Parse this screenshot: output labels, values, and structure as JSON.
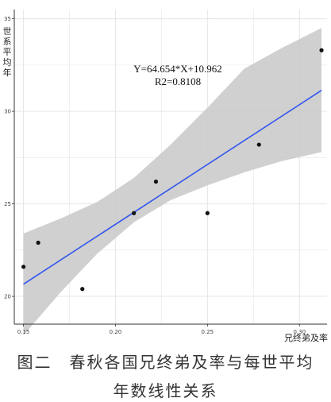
{
  "chart_data": {
    "type": "scatter",
    "ylabel": "世系平均年",
    "xlabel": "兄终弟及率",
    "xlim": [
      0.145,
      0.315
    ],
    "ylim": [
      18.5,
      35.5
    ],
    "x_ticks": [
      0.15,
      0.2,
      0.25,
      0.3
    ],
    "x_tick_labels": [
      "0.15",
      "0.20",
      "0.25",
      "0.30"
    ],
    "y_ticks": [
      20,
      25,
      30,
      35
    ],
    "y_tick_labels": [
      "20",
      "25",
      "30",
      "35"
    ],
    "grid": true,
    "points": [
      {
        "x": 0.15,
        "y": 21.6
      },
      {
        "x": 0.158,
        "y": 22.9
      },
      {
        "x": 0.182,
        "y": 20.4
      },
      {
        "x": 0.21,
        "y": 24.5
      },
      {
        "x": 0.222,
        "y": 26.2
      },
      {
        "x": 0.25,
        "y": 24.5
      },
      {
        "x": 0.278,
        "y": 28.2
      },
      {
        "x": 0.312,
        "y": 33.3
      }
    ],
    "regression": {
      "slope": 64.654,
      "intercept": 10.962,
      "x_range": [
        0.15,
        0.312
      ],
      "ci_band": [
        {
          "x": 0.15,
          "lo": 17.9,
          "hi": 23.4
        },
        {
          "x": 0.17,
          "lo": 20.2,
          "hi": 24.2
        },
        {
          "x": 0.19,
          "lo": 22.3,
          "hi": 25.1
        },
        {
          "x": 0.21,
          "lo": 24.0,
          "hi": 26.4
        },
        {
          "x": 0.23,
          "lo": 25.2,
          "hi": 28.2
        },
        {
          "x": 0.25,
          "lo": 26.0,
          "hi": 30.2
        },
        {
          "x": 0.27,
          "lo": 26.7,
          "hi": 32.3
        },
        {
          "x": 0.29,
          "lo": 27.3,
          "hi": 33.4
        },
        {
          "x": 0.312,
          "lo": 27.8,
          "hi": 34.5
        }
      ]
    },
    "annotations": [
      "Y=64.654*X+10.962",
      "R2=0.8108"
    ],
    "colors": {
      "line": "#3355ee",
      "band": "#c8c8c8",
      "points": "#111111",
      "grid": "#e6e6e6",
      "axis": "#333333"
    }
  },
  "caption": {
    "line1": "图二　春秋各国兄终弟及率与每世平均",
    "line2": "年数线性关系"
  }
}
